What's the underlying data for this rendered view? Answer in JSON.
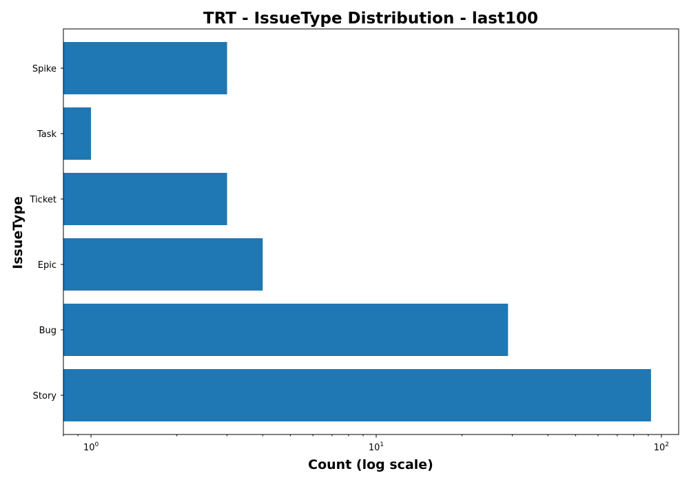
{
  "chart_data": {
    "type": "bar",
    "orientation": "horizontal",
    "title": "TRT - IssueType Distribution - last100",
    "xlabel": "Count (log scale)",
    "ylabel": "IssueType",
    "x_scale": "log",
    "xlim": [
      0.8,
      115
    ],
    "x_ticks": [
      {
        "base": "10",
        "exp": "0",
        "value": 1
      },
      {
        "base": "10",
        "exp": "1",
        "value": 10
      },
      {
        "base": "10",
        "exp": "2",
        "value": 100
      }
    ],
    "categories": [
      "Story",
      "Bug",
      "Epic",
      "Ticket",
      "Task",
      "Spike"
    ],
    "values": [
      92,
      29,
      4,
      3,
      1,
      3
    ],
    "bar_color": "#1f77b4",
    "grid": false,
    "legend": "none"
  }
}
